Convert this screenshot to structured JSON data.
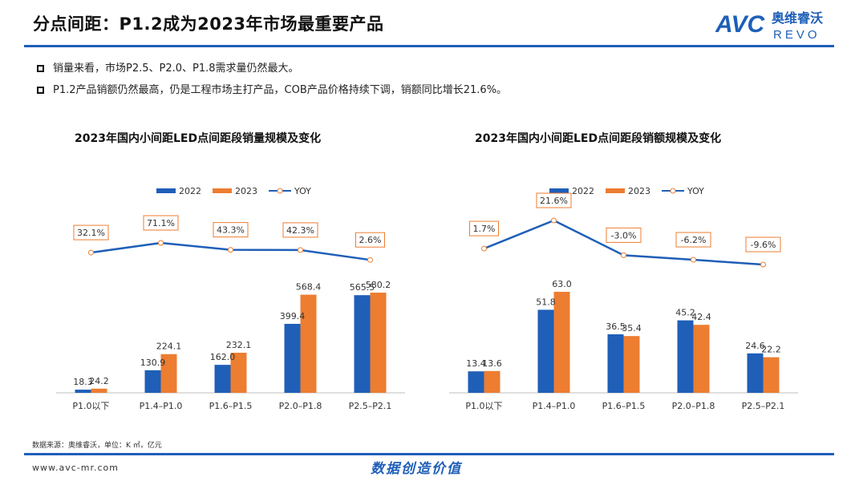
{
  "header": {
    "title": "分点间距：P1.2成为2023年市场最重要产品",
    "logo_main": "AVC",
    "logo_cn": "奥维睿沃",
    "logo_en": "REVO"
  },
  "bullets": [
    "销量来看，市场P2.5、P2.0、P1.8需求量仍然最大。",
    "P1.2产品销额仍然最高，仍是工程市场主打产品，COB产品价格持续下调，销额同比增长21.6%。"
  ],
  "colors": {
    "s2022": "#1f5fb8",
    "s2023": "#ed7d31",
    "yoy": "#1f5fb8",
    "line": "#1f5fb8"
  },
  "chart_data": [
    {
      "type": "bar",
      "title": "2023年国内小间距LED点间距段销量规模及变化",
      "categories": [
        "P1.0以下",
        "P1.4–P1.0",
        "P1.6–P1.5",
        "P2.0–P1.8",
        "P2.5–P2.1"
      ],
      "series": [
        {
          "name": "2022",
          "values": [
            18.3,
            130.9,
            162.0,
            399.4,
            565.5
          ],
          "labels": [
            "18.3",
            "130.9",
            "162.0",
            "399.4",
            "565.5"
          ]
        },
        {
          "name": "2023",
          "values": [
            24.2,
            224.1,
            232.1,
            568.4,
            580.2
          ],
          "labels": [
            "24.2",
            "224.1",
            "232.1",
            "568.4",
            "580.2"
          ]
        }
      ],
      "yoy": {
        "name": "YOY",
        "values": [
          32.1,
          71.1,
          43.3,
          42.3,
          2.6
        ],
        "labels": [
          "32.1%",
          "71.1%",
          "43.3%",
          "42.3%",
          "2.6%"
        ]
      },
      "legend": "top-center",
      "ylim": [
        0,
        650
      ]
    },
    {
      "type": "bar",
      "title": "2023年国内小间距LED点间距段销额规模及变化",
      "categories": [
        "P1.0以下",
        "P1.4–P1.0",
        "P1.6–P1.5",
        "P2.0–P1.8",
        "P2.5–P2.1"
      ],
      "series": [
        {
          "name": "2022",
          "values": [
            13.4,
            51.8,
            36.5,
            45.2,
            24.6
          ],
          "labels": [
            "13.4",
            "51.8",
            "36.5",
            "45.2",
            "24.6"
          ]
        },
        {
          "name": "2023",
          "values": [
            13.6,
            63.0,
            35.4,
            42.4,
            22.2
          ],
          "labels": [
            "13.6",
            "63.0",
            "35.4",
            "42.4",
            "22.2"
          ]
        }
      ],
      "yoy": {
        "name": "YOY",
        "values": [
          1.7,
          21.6,
          -3.0,
          -6.2,
          -9.6
        ],
        "labels": [
          "1.7%",
          "21.6%",
          "-3.0%",
          "-6.2%",
          "-9.6%"
        ]
      },
      "legend": "top-center",
      "ylim": [
        0,
        70
      ]
    }
  ],
  "footer": {
    "source": "数据来源：奥维睿沃，单位：K ㎡，亿元",
    "site": "www.avc-mr.com",
    "slogan": "数据创造价值"
  }
}
